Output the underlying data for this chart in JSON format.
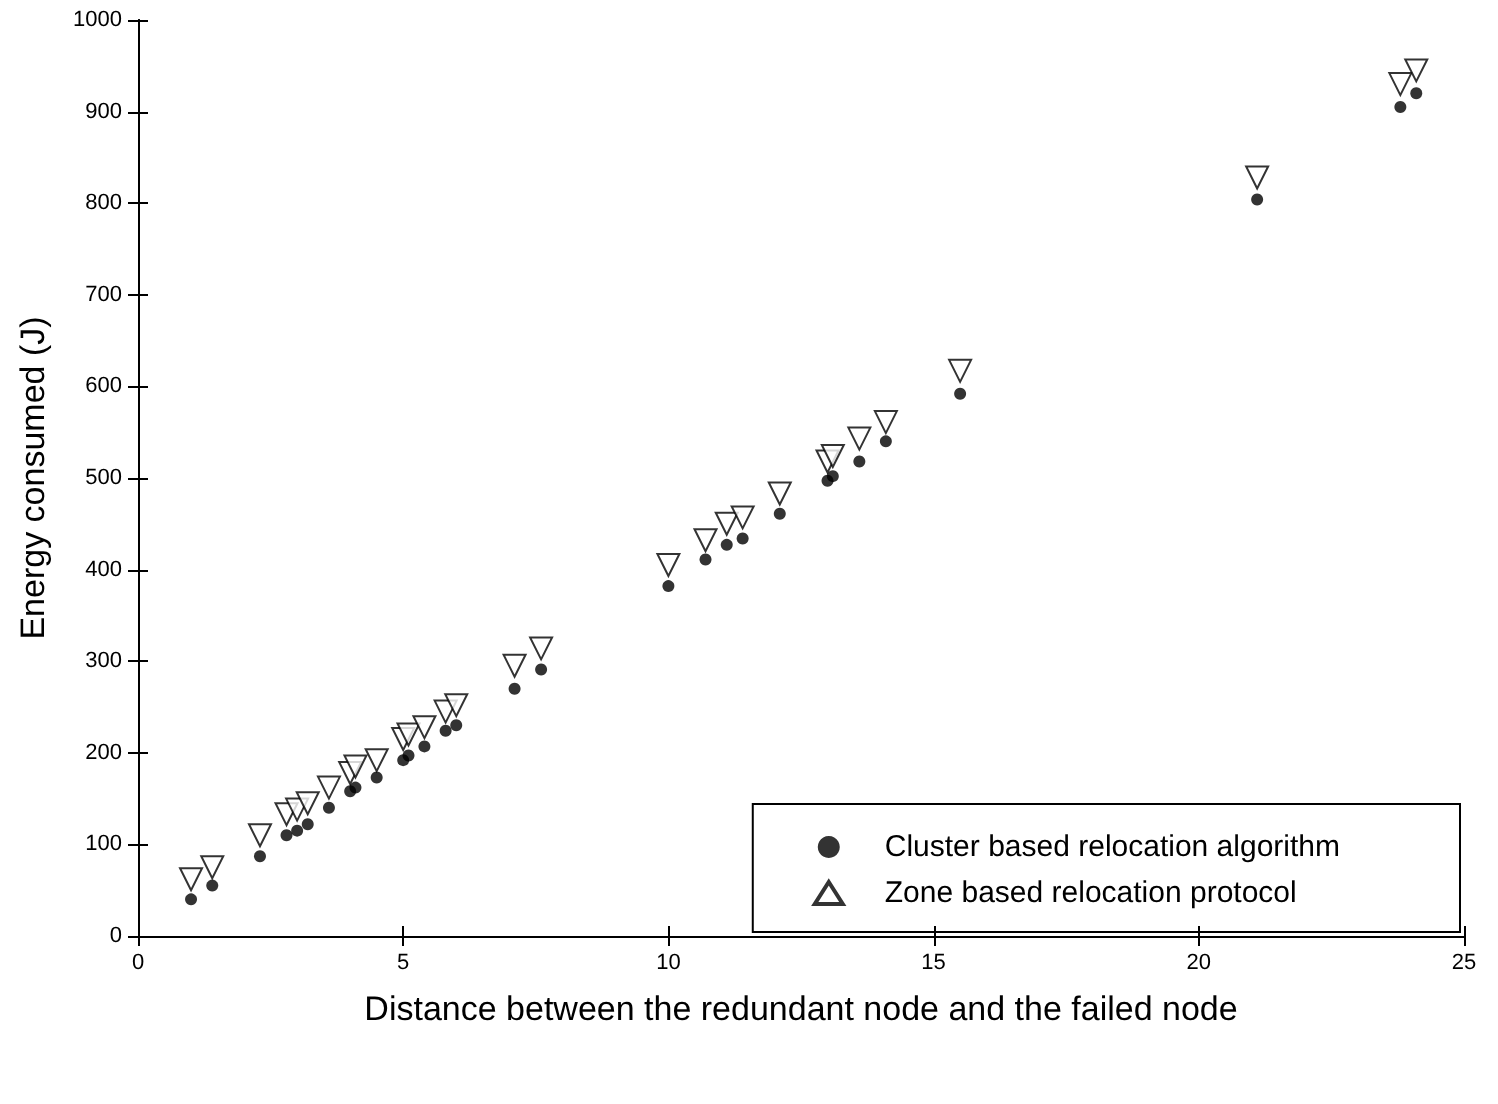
{
  "chart_data": {
    "type": "scatter",
    "xlabel": "Distance between the redundant node and the failed node",
    "ylabel": "Energy consumed (J)",
    "xlim": [
      0,
      25
    ],
    "xticks": [
      0,
      5,
      10,
      15,
      20,
      25
    ],
    "ylim": [
      0,
      1000
    ],
    "yticks": [
      0,
      100,
      200,
      300,
      400,
      500,
      600,
      700,
      800,
      900,
      1000
    ],
    "grid": false,
    "legend": "bottom right",
    "x": [
      1.0,
      1.4,
      2.3,
      2.8,
      3.0,
      3.2,
      3.6,
      4.0,
      4.1,
      4.5,
      5.0,
      5.1,
      5.4,
      5.8,
      6.0,
      7.1,
      7.6,
      10.0,
      10.7,
      11.1,
      11.4,
      12.1,
      13.0,
      13.1,
      13.6,
      14.1,
      15.5,
      21.1,
      23.8,
      24.1
    ],
    "series": [
      {
        "name": "Cluster based relocation algorithm",
        "color": "#000000",
        "marker": "circle",
        "values": [
          40,
          55,
          87,
          110,
          115,
          122,
          140,
          158,
          162,
          173,
          192,
          197,
          207,
          224,
          230,
          270,
          291,
          382,
          411,
          427,
          434,
          461,
          497,
          502,
          518,
          540,
          592,
          804,
          905,
          920
        ]
      },
      {
        "name": "Zone based relocation protocol",
        "color": "#000000",
        "marker": "triangle",
        "values": [
          62,
          75,
          110,
          133,
          138,
          145,
          162,
          178,
          185,
          192,
          215,
          220,
          228,
          245,
          252,
          295,
          314,
          405,
          432,
          450,
          457,
          483,
          518,
          524,
          543,
          561,
          617,
          828,
          930,
          945
        ]
      }
    ]
  }
}
